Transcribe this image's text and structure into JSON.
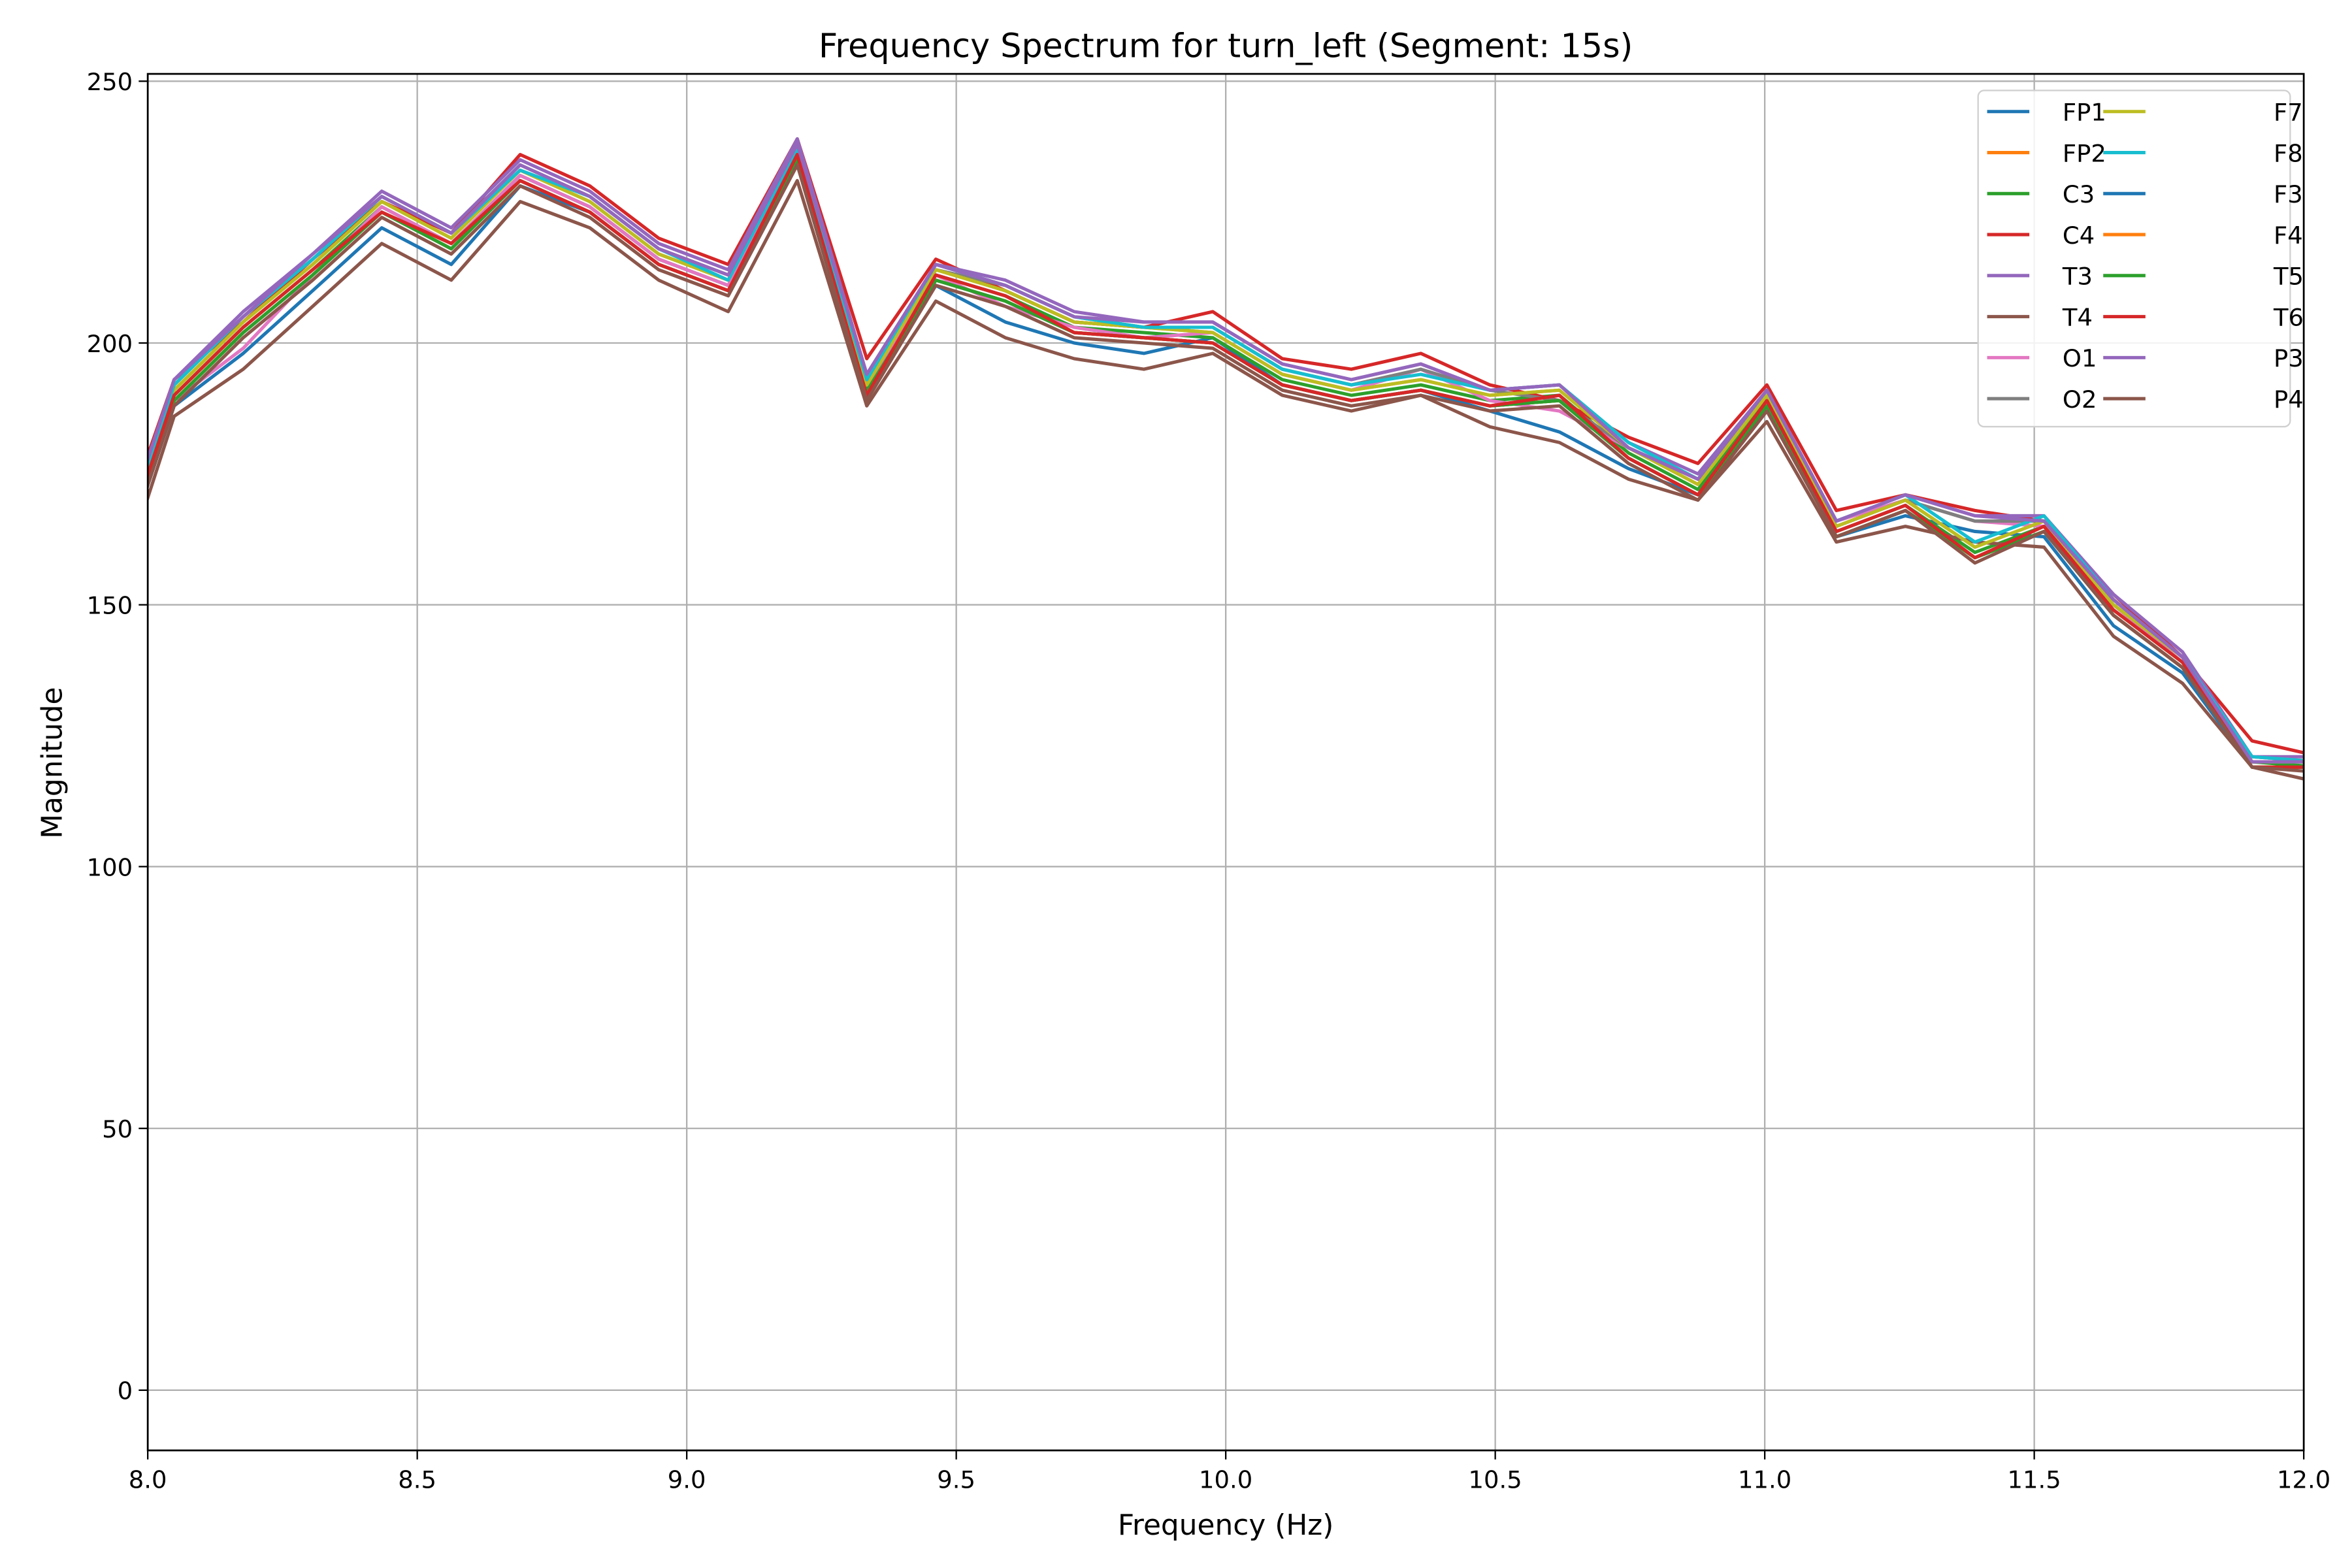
{
  "chart_data": {
    "type": "line",
    "title": "Frequency Spectrum for turn_left (Segment: 15s)",
    "xlabel": "Frequency (Hz)",
    "ylabel": "Magnitude",
    "xlim": [
      8.0,
      12.0
    ],
    "ylim": [
      -11.5,
      251.4
    ],
    "xticks": [
      "8.0",
      "8.5",
      "9.0",
      "9.5",
      "10.0",
      "10.5",
      "11.0",
      "11.5",
      "12.0"
    ],
    "yticks": [
      "0",
      "50",
      "100",
      "150",
      "200",
      "250"
    ],
    "grid": true,
    "legend_placement": "top-right",
    "legend_columns": 2,
    "x": [
      7.92,
      8.049,
      8.177,
      8.306,
      8.434,
      8.563,
      8.691,
      8.82,
      8.948,
      9.077,
      9.205,
      9.334,
      9.462,
      9.591,
      9.719,
      9.848,
      9.976,
      10.105,
      10.233,
      10.362,
      10.49,
      10.619,
      10.747,
      10.876,
      11.004,
      11.133,
      11.261,
      11.39,
      11.518,
      11.647,
      11.775,
      11.904,
      12.032
    ],
    "series": [
      {
        "name": "FP1",
        "color": "#1f77b4",
        "values": [
          148,
          188,
          198,
          210,
          222,
          215,
          230,
          225,
          215,
          210,
          235,
          190,
          211,
          204,
          200,
          198,
          201,
          192,
          189,
          191,
          187,
          183,
          176,
          171,
          188,
          163,
          167,
          164,
          163,
          146,
          137,
          119,
          119
        ]
      },
      {
        "name": "FP2",
        "color": "#ff7f0e",
        "values": [
          151,
          191,
          204,
          215,
          227,
          220,
          233,
          227,
          217,
          212,
          237,
          192,
          214,
          210,
          204,
          203,
          202,
          194,
          191,
          193,
          190,
          191,
          180,
          173,
          190,
          165,
          170,
          161,
          166,
          150,
          140,
          121,
          120
        ]
      },
      {
        "name": "C3",
        "color": "#2ca02c",
        "values": [
          150,
          190,
          203,
          214,
          226,
          219,
          232,
          226,
          216,
          211,
          236,
          191,
          213,
          209,
          203,
          202,
          201,
          193,
          190,
          192,
          189,
          190,
          179,
          172,
          189,
          164,
          169,
          160,
          165,
          149,
          139,
          120,
          119
        ]
      },
      {
        "name": "C4",
        "color": "#d62728",
        "values": [
          155,
          193,
          204,
          216,
          227,
          221,
          236,
          230,
          220,
          215,
          239,
          197,
          216,
          210,
          204,
          203,
          206,
          197,
          195,
          198,
          192,
          189,
          182,
          177,
          192,
          168,
          171,
          168,
          166,
          152,
          140,
          124,
          121
        ]
      },
      {
        "name": "T3",
        "color": "#9467bd",
        "values": [
          153,
          193,
          206,
          217,
          229,
          222,
          235,
          229,
          219,
          214,
          239,
          194,
          215,
          212,
          206,
          204,
          204,
          196,
          193,
          196,
          191,
          192,
          181,
          175,
          191,
          166,
          171,
          167,
          167,
          152,
          141,
          121,
          121
        ]
      },
      {
        "name": "T4",
        "color": "#8c564b",
        "values": [
          145,
          186,
          195,
          207,
          219,
          212,
          227,
          222,
          212,
          206,
          231,
          188,
          208,
          201,
          197,
          195,
          198,
          190,
          187,
          190,
          184,
          181,
          174,
          170,
          185,
          162,
          165,
          162,
          161,
          144,
          135,
          119,
          116
        ]
      },
      {
        "name": "O1",
        "color": "#e377c2",
        "values": [
          149,
          189,
          199,
          213,
          226,
          219,
          232,
          226,
          216,
          211,
          236,
          192,
          213,
          207,
          203,
          201,
          202,
          194,
          191,
          195,
          189,
          187,
          180,
          174,
          190,
          166,
          170,
          166,
          165,
          150,
          139,
          121,
          120
        ]
      },
      {
        "name": "O2",
        "color": "#7f7f7f",
        "values": [
          152,
          192,
          205,
          216,
          228,
          221,
          234,
          228,
          218,
          213,
          237,
          193,
          214,
          211,
          205,
          203,
          203,
          195,
          192,
          195,
          191,
          189,
          180,
          174,
          190,
          165,
          170,
          166,
          166,
          151,
          140,
          120,
          120
        ]
      },
      {
        "name": "F7",
        "color": "#bcbd22",
        "values": [
          151,
          191,
          204,
          215,
          227,
          220,
          233,
          227,
          217,
          212,
          237,
          192,
          214,
          210,
          204,
          203,
          202,
          194,
          191,
          193,
          190,
          191,
          180,
          173,
          190,
          165,
          170,
          161,
          166,
          150,
          140,
          120,
          120
        ]
      },
      {
        "name": "F8",
        "color": "#17becf",
        "values": [
          152,
          192,
          205,
          216,
          228,
          221,
          233,
          228,
          218,
          212,
          237,
          193,
          215,
          211,
          205,
          203,
          203,
          195,
          192,
          194,
          191,
          192,
          181,
          174,
          191,
          166,
          171,
          162,
          167,
          151,
          140,
          121,
          120
        ]
      },
      {
        "name": "F3",
        "color": "#1f77b4",
        "values": [
          149,
          189,
          202,
          213,
          225,
          218,
          231,
          225,
          215,
          210,
          235,
          190,
          212,
          208,
          202,
          201,
          200,
          192,
          189,
          191,
          188,
          189,
          178,
          171,
          188,
          163,
          168,
          159,
          164,
          148,
          138,
          119,
          119
        ]
      },
      {
        "name": "F4",
        "color": "#ff7f0e",
        "values": [
          149,
          189,
          202,
          213,
          225,
          218,
          231,
          225,
          215,
          210,
          235,
          190,
          212,
          208,
          202,
          201,
          200,
          192,
          189,
          191,
          188,
          189,
          178,
          171,
          188,
          163,
          168,
          159,
          164,
          148,
          138,
          119,
          119
        ]
      },
      {
        "name": "T5",
        "color": "#2ca02c",
        "values": [
          149,
          189,
          202,
          213,
          225,
          218,
          231,
          225,
          215,
          210,
          235,
          190,
          212,
          208,
          202,
          201,
          200,
          192,
          189,
          191,
          188,
          189,
          178,
          171,
          188,
          163,
          168,
          159,
          164,
          148,
          138,
          119,
          119
        ]
      },
      {
        "name": "T6",
        "color": "#d62728",
        "values": [
          150,
          190,
          203,
          214,
          225,
          219,
          231,
          225,
          215,
          210,
          236,
          190,
          213,
          209,
          202,
          201,
          200,
          192,
          189,
          191,
          188,
          190,
          178,
          171,
          189,
          164,
          169,
          159,
          165,
          149,
          139,
          119,
          119
        ]
      },
      {
        "name": "P3",
        "color": "#9467bd",
        "values": [
          153,
          193,
          205,
          217,
          228,
          221,
          234,
          228,
          218,
          213,
          238,
          194,
          215,
          211,
          205,
          204,
          204,
          196,
          193,
          196,
          191,
          192,
          180,
          174,
          191,
          166,
          171,
          167,
          166,
          151,
          140,
          120,
          120
        ]
      },
      {
        "name": "P4",
        "color": "#8c564b",
        "values": [
          148,
          188,
          201,
          212,
          224,
          217,
          230,
          224,
          214,
          209,
          234,
          189,
          211,
          207,
          201,
          200,
          199,
          191,
          188,
          190,
          187,
          188,
          177,
          170,
          187,
          163,
          168,
          158,
          164,
          148,
          138,
          119,
          118
        ]
      }
    ]
  }
}
